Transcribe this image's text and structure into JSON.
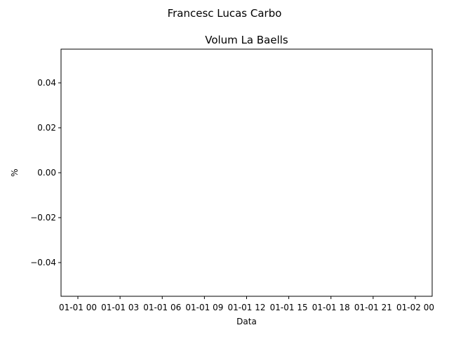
{
  "figure": {
    "suptitle": "Francesc Lucas Carbo"
  },
  "chart_data": {
    "type": "line",
    "title": "Volum La Baells",
    "xlabel": "Data",
    "ylabel": "%",
    "x_ticks": [
      "01-01 00",
      "01-01 03",
      "01-01 06",
      "01-01 09",
      "01-01 12",
      "01-01 15",
      "01-01 18",
      "01-01 21",
      "01-02 00"
    ],
    "y_ticks": [
      "0.04",
      "0.02",
      "0.00",
      "−0.02",
      "−0.04"
    ],
    "y_tick_values": [
      0.04,
      0.02,
      0.0,
      -0.02,
      -0.04
    ],
    "ylim": [
      -0.055,
      0.055
    ],
    "series": [],
    "grid": false
  }
}
